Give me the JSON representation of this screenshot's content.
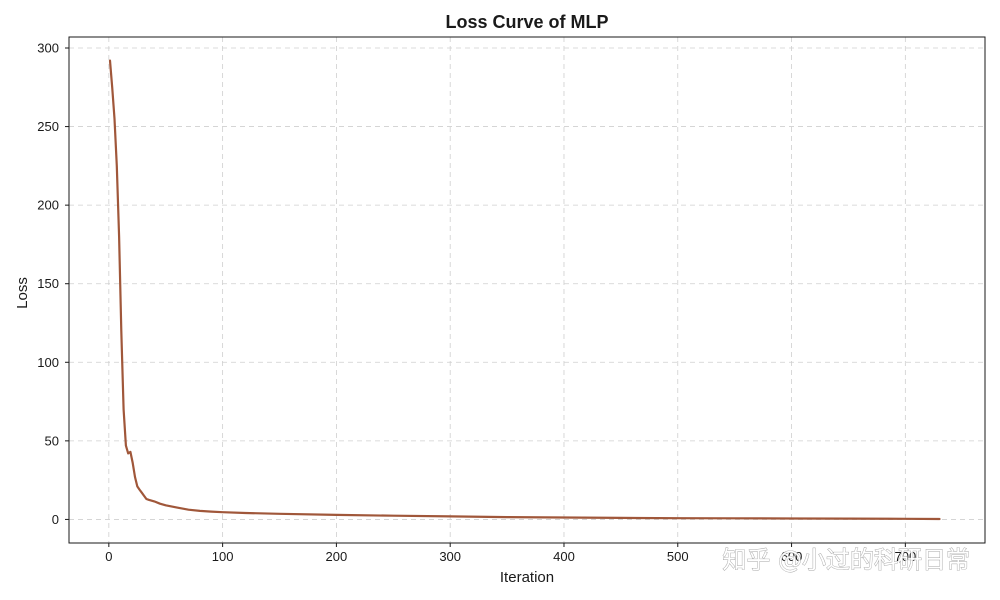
{
  "chart_data": {
    "type": "line",
    "title": "Loss Curve of MLP",
    "xlabel": "Iteration",
    "ylabel": "Loss",
    "xlim": [
      -35,
      770
    ],
    "ylim": [
      -15,
      307
    ],
    "xticks": [
      0,
      100,
      200,
      300,
      400,
      500,
      600,
      700
    ],
    "xtick_labels": [
      "0",
      "100",
      "200",
      "300",
      "400",
      "500",
      "600",
      "700"
    ],
    "yticks": [
      0,
      50,
      100,
      150,
      200,
      250,
      300
    ],
    "ytick_labels": [
      "0",
      "50",
      "100",
      "150",
      "200",
      "250",
      "300"
    ],
    "grid": true,
    "legend": "none",
    "series": [
      {
        "color": "#a0573a",
        "x": [
          1,
          3,
          5,
          7,
          9,
          11,
          13,
          15,
          17,
          19,
          21,
          23,
          25,
          27,
          29,
          31,
          33,
          35,
          40,
          45,
          50,
          60,
          70,
          80,
          90,
          100,
          120,
          150,
          200,
          250,
          300,
          350,
          400,
          450,
          500,
          550,
          600,
          650,
          700,
          730
        ],
        "y": [
          292,
          275,
          255,
          225,
          180,
          120,
          70,
          47,
          42,
          43,
          36,
          27,
          21,
          19,
          17,
          15,
          13,
          12.5,
          11.5,
          10,
          9,
          7.5,
          6.2,
          5.4,
          5,
          4.6,
          4.1,
          3.6,
          2.9,
          2.4,
          1.9,
          1.5,
          1.2,
          1.0,
          0.8,
          0.7,
          0.6,
          0.5,
          0.4,
          0.3
        ]
      }
    ]
  },
  "watermark": {
    "text": "知乎 @小过的科研日常"
  }
}
